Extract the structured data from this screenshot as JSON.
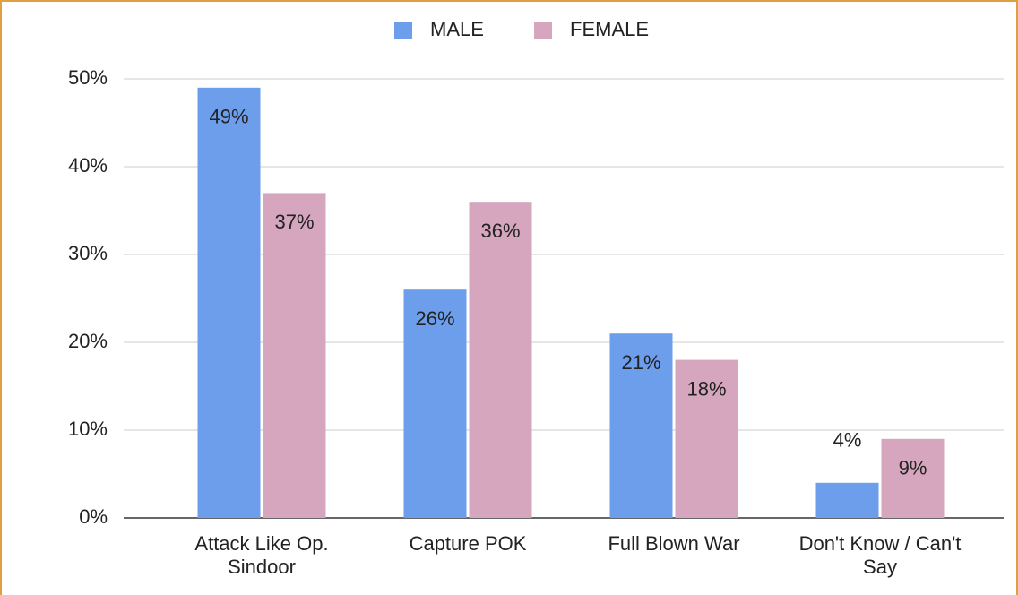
{
  "chart_data": {
    "type": "bar",
    "categories": [
      "Attack Like Op. Sindoor",
      "Capture POK",
      "Full Blown War",
      "Don't Know / Can't Say"
    ],
    "series": [
      {
        "name": "MALE",
        "color": "#6d9eeb",
        "values": [
          49,
          26,
          21,
          4
        ],
        "value_labels": [
          "49%",
          "26%",
          "21%",
          "4%"
        ]
      },
      {
        "name": "FEMALE",
        "color": "#d5a6bd",
        "values": [
          37,
          36,
          18,
          9
        ],
        "value_labels": [
          "37%",
          "36%",
          "18%",
          "9%"
        ]
      }
    ],
    "ylim": [
      0,
      50
    ],
    "yticks": [
      {
        "value": 0,
        "label": "0%"
      },
      {
        "value": 10,
        "label": "10%"
      },
      {
        "value": 20,
        "label": "20%"
      },
      {
        "value": 30,
        "label": "30%"
      },
      {
        "value": 40,
        "label": "40%"
      },
      {
        "value": 50,
        "label": "50%"
      }
    ],
    "grid": true,
    "legend": "top"
  }
}
